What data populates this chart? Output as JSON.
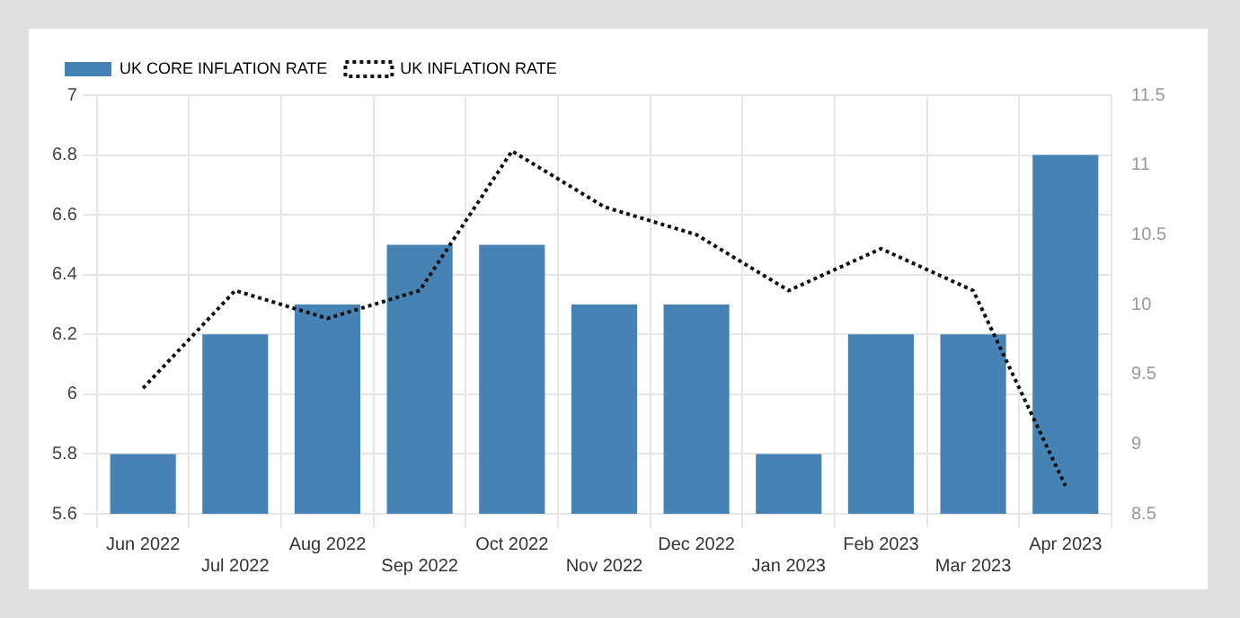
{
  "chart_data": {
    "type": "bar",
    "categories": [
      "Jun 2022",
      "Jul 2022",
      "Aug 2022",
      "Sep 2022",
      "Oct 2022",
      "Nov 2022",
      "Dec 2022",
      "Jan 2023",
      "Feb 2023",
      "Mar 2023",
      "Apr 2023"
    ],
    "series": [
      {
        "name": "UK CORE INFLATION RATE",
        "color": "#4682b4",
        "values": [
          5.8,
          6.2,
          6.3,
          6.5,
          6.5,
          6.3,
          6.3,
          5.8,
          6.2,
          6.2,
          6.8
        ]
      },
      {
        "name": "UK INFLATION RATE",
        "type": "line",
        "axis": "y2",
        "color": "#111111",
        "line_style": "dotted",
        "values": [
          9.4,
          10.1,
          9.9,
          10.1,
          11.1,
          10.7,
          10.5,
          10.1,
          10.4,
          10.1,
          8.7
        ]
      }
    ],
    "ylim": [
      5.6,
      7
    ],
    "yticks": [
      5.6,
      5.8,
      6,
      6.2,
      6.4,
      6.6,
      6.8,
      7
    ],
    "y2lim": [
      8.5,
      11.5
    ],
    "y2ticks": [
      8.5,
      9,
      9.5,
      10,
      10.5,
      11,
      11.5
    ],
    "grid": true,
    "legend": "top left",
    "marker": "none"
  }
}
